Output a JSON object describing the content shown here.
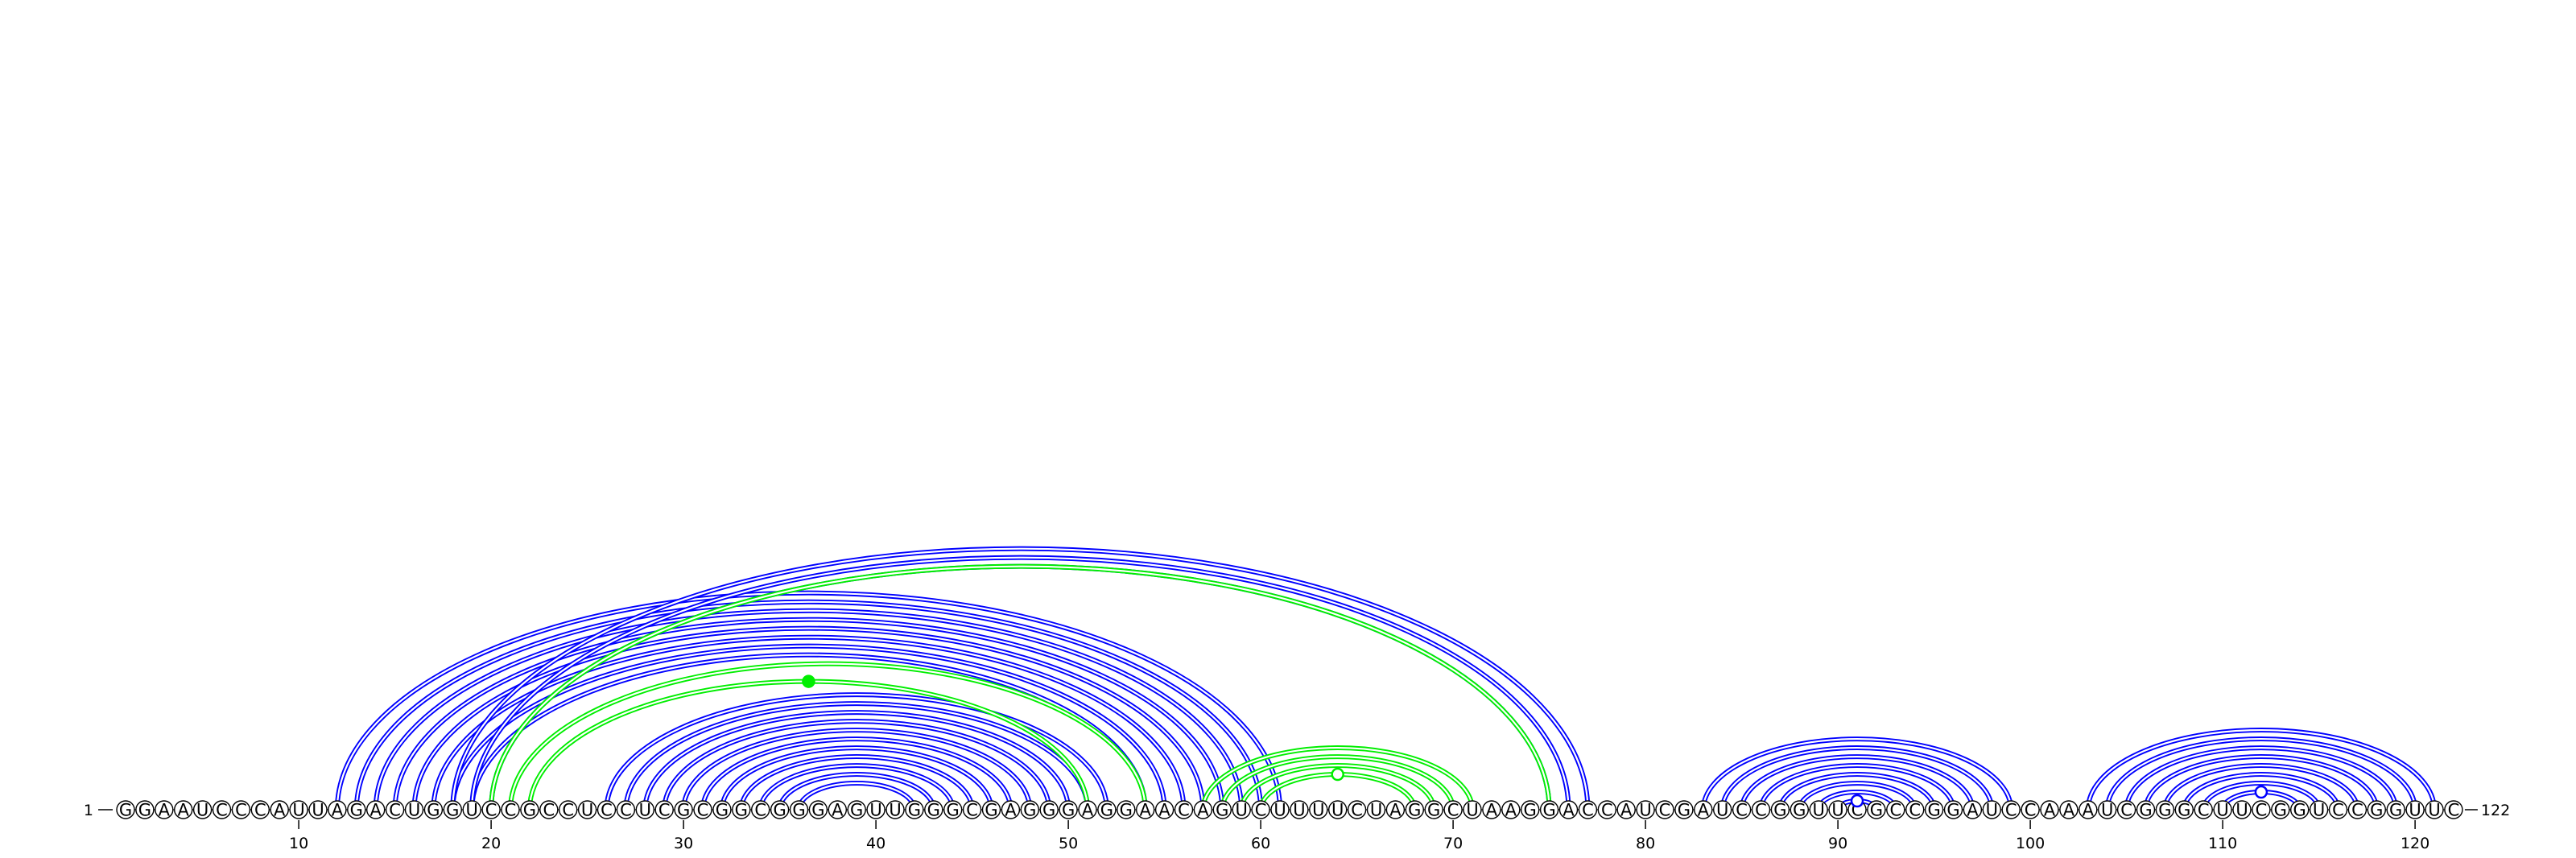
{
  "sequence": "GGAAUCCCAUUAGACUGGUCCGCCUCCUCGCGGCGGGAGUUGGGCGAGGGAGGAACAGUCUUUUCUAGGCUAAGGACCAUCGAUCCGGUUCGCCGGAUCCAAAUCGGGCUUCGGUCCGGUUC",
  "start_label": "1",
  "end_label": "122",
  "ticks": [
    10,
    20,
    30,
    40,
    50,
    60,
    70,
    80,
    90,
    100,
    110,
    120
  ],
  "colors": {
    "blue": "#0000ff",
    "green": "#00ee00",
    "backbone": "#333333"
  },
  "chart_data": {
    "type": "arc",
    "length": 122,
    "blue_arcs": [
      [
        12,
        61
      ],
      [
        13,
        60
      ],
      [
        14,
        59
      ],
      [
        15,
        58
      ],
      [
        16,
        57
      ],
      [
        17,
        56
      ],
      [
        18,
        55
      ],
      [
        19,
        54
      ],
      [
        18,
        77
      ],
      [
        19,
        76
      ],
      [
        20,
        75
      ],
      [
        26,
        52
      ],
      [
        27,
        51
      ],
      [
        28,
        50
      ],
      [
        29,
        49
      ],
      [
        30,
        48
      ],
      [
        31,
        47
      ],
      [
        32,
        46
      ],
      [
        33,
        45
      ],
      [
        34,
        44
      ],
      [
        35,
        43
      ],
      [
        36,
        42
      ],
      [
        83,
        99
      ],
      [
        84,
        98
      ],
      [
        85,
        97
      ],
      [
        86,
        96
      ],
      [
        87,
        95
      ],
      [
        88,
        94
      ],
      [
        89,
        93
      ],
      [
        90,
        92
      ],
      [
        103,
        121
      ],
      [
        104,
        120
      ],
      [
        105,
        119
      ],
      [
        106,
        118
      ],
      [
        107,
        117
      ],
      [
        108,
        116
      ],
      [
        109,
        115
      ],
      [
        110,
        114
      ]
    ],
    "green_arcs": [
      [
        20,
        75
      ],
      [
        21,
        54
      ],
      [
        22,
        51
      ],
      [
        57,
        71
      ],
      [
        58,
        70
      ],
      [
        59,
        69
      ],
      [
        60,
        68
      ]
    ],
    "markers": [
      {
        "pos": 36.5,
        "color": "green",
        "filled": true
      },
      {
        "pos": 64,
        "color": "green",
        "filled": false
      },
      {
        "pos": 91,
        "color": "blue",
        "filled": false
      },
      {
        "pos": 112,
        "color": "blue",
        "filled": false
      }
    ]
  }
}
